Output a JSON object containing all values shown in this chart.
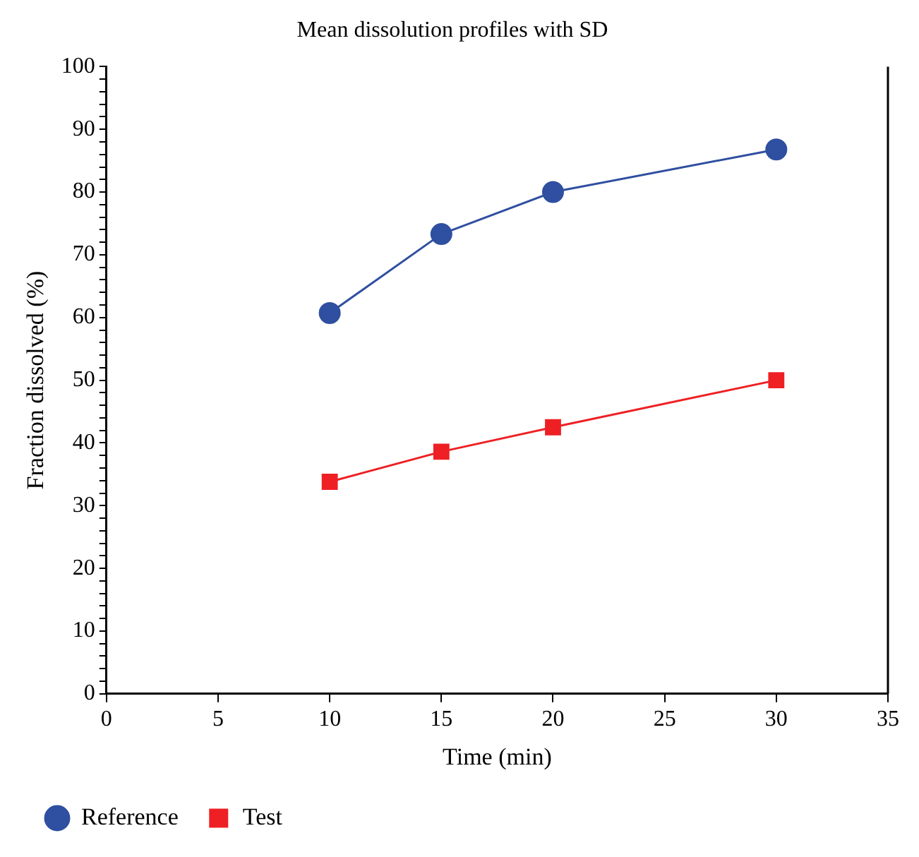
{
  "chart_data": {
    "type": "line",
    "title": "Mean dissolution profiles with SD",
    "xlabel": "Time (min)",
    "ylabel": "Fraction dissolved (%)",
    "x": [
      10,
      15,
      20,
      30
    ],
    "series": [
      {
        "name": "Reference",
        "color": "#2f4fa0",
        "marker": "circle",
        "values": [
          60.7,
          73.3,
          80.0,
          86.8
        ]
      },
      {
        "name": "Test",
        "color": "#ee2024",
        "marker": "square",
        "values": [
          33.8,
          38.6,
          42.5,
          50.0
        ]
      }
    ],
    "xlim": [
      0,
      35
    ],
    "xticks": [
      0,
      5,
      10,
      15,
      20,
      25,
      30,
      35
    ],
    "ylim": [
      0,
      100
    ],
    "yticks": [
      0,
      {
        "value": 2,
        "label": null
      },
      {
        "value": 4,
        "label": null
      },
      {
        "value": 6,
        "label": null
      },
      {
        "value": 8,
        "label": null
      },
      10,
      {
        "value": 12,
        "label": null
      },
      {
        "value": 14,
        "label": null
      },
      {
        "value": 16,
        "label": null
      },
      {
        "value": 18,
        "label": null
      },
      20,
      {
        "value": 22,
        "label": null
      },
      {
        "value": 24,
        "label": null
      },
      {
        "value": 26,
        "label": null
      },
      {
        "value": 28,
        "label": null
      },
      30,
      {
        "value": 32,
        "label": null
      },
      {
        "value": 34,
        "label": null
      },
      {
        "value": 36,
        "label": null
      },
      {
        "value": 38,
        "label": null
      },
      40,
      {
        "value": 42,
        "label": null
      },
      {
        "value": 44,
        "label": null
      },
      {
        "value": 46,
        "label": null
      },
      {
        "value": 48,
        "label": null
      },
      50,
      {
        "value": 52,
        "label": null
      },
      {
        "value": 54,
        "label": null
      },
      {
        "value": 56,
        "label": null
      },
      {
        "value": 58,
        "label": null
      },
      60,
      {
        "value": 62,
        "label": null
      },
      {
        "value": 64,
        "label": null
      },
      {
        "value": 66,
        "label": null
      },
      {
        "value": 68,
        "label": null
      },
      70,
      {
        "value": 72,
        "label": null
      },
      {
        "value": 74,
        "label": null
      },
      {
        "value": 76,
        "label": null
      },
      {
        "value": 78,
        "label": null
      },
      80,
      {
        "value": 82,
        "label": null
      },
      {
        "value": 84,
        "label": null
      },
      {
        "value": 86,
        "label": null
      },
      {
        "value": 88,
        "label": null
      },
      90,
      {
        "value": 92,
        "label": null
      },
      {
        "value": 94,
        "label": null
      },
      {
        "value": 96,
        "label": null
      },
      {
        "value": 98,
        "label": null
      },
      100
    ],
    "grid": false,
    "legend": "bottom left",
    "line_style": "solid"
  }
}
